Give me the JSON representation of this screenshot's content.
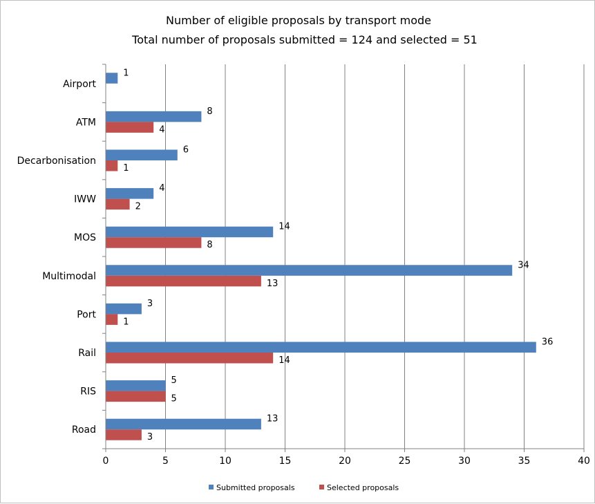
{
  "chart_data": {
    "type": "bar",
    "orientation": "horizontal",
    "title": "Number of eligible proposals by transport mode",
    "subtitle": "Total number of proposals submitted = 124 and selected = 51",
    "categories": [
      "Airport",
      "ATM",
      "Decarbonisation",
      "IWW",
      "MOS",
      "Multimodal",
      "Port",
      "Rail",
      "RIS",
      "Road"
    ],
    "series": [
      {
        "name": "Submitted proposals",
        "color": "#4F81BD",
        "values": [
          1,
          8,
          6,
          4,
          14,
          34,
          3,
          36,
          5,
          13
        ]
      },
      {
        "name": "Selected proposals",
        "color": "#C0504D",
        "values": [
          null,
          4,
          1,
          2,
          8,
          13,
          1,
          14,
          5,
          3
        ]
      }
    ],
    "data_labels": {
      "Submitted proposals": [
        "1",
        "8",
        "6",
        "4",
        "14",
        "34",
        "3",
        "36",
        "5",
        "13"
      ],
      "Selected proposals": [
        "",
        "4",
        "1",
        "2",
        "8",
        "13",
        "1",
        "14",
        "5",
        "3"
      ]
    },
    "xlim": [
      0,
      40
    ],
    "xticks": [
      "0",
      "5",
      "10",
      "15",
      "20",
      "25",
      "30",
      "35",
      "40"
    ],
    "grid": "vertical",
    "legend": "bottom",
    "xlabel": "",
    "ylabel": ""
  }
}
